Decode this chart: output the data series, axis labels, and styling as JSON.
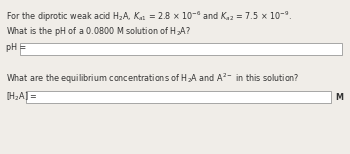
{
  "bg_color": "#f0ede8",
  "text_color": "#333333",
  "box_color": "#ffffff",
  "box_edge_color": "#999999",
  "line1_render": "For the diprotic weak acid H$_2$A, $K_{a1}$ = 2.8 × 10$^{-6}$ and $K_{a2}$ = 7.5 × 10$^{-9}$.",
  "line2": "What is the pH of a 0.0800 M solution of H$_2$A?",
  "label_ph": "pH =",
  "line3": "What are the equilibrium concentrations of H$_2$A and A$^{2-}$ in this solution?",
  "label_h2a": "[H$_2$A] =",
  "label_m": "M",
  "font_size_text": 5.8,
  "font_size_label": 5.8
}
